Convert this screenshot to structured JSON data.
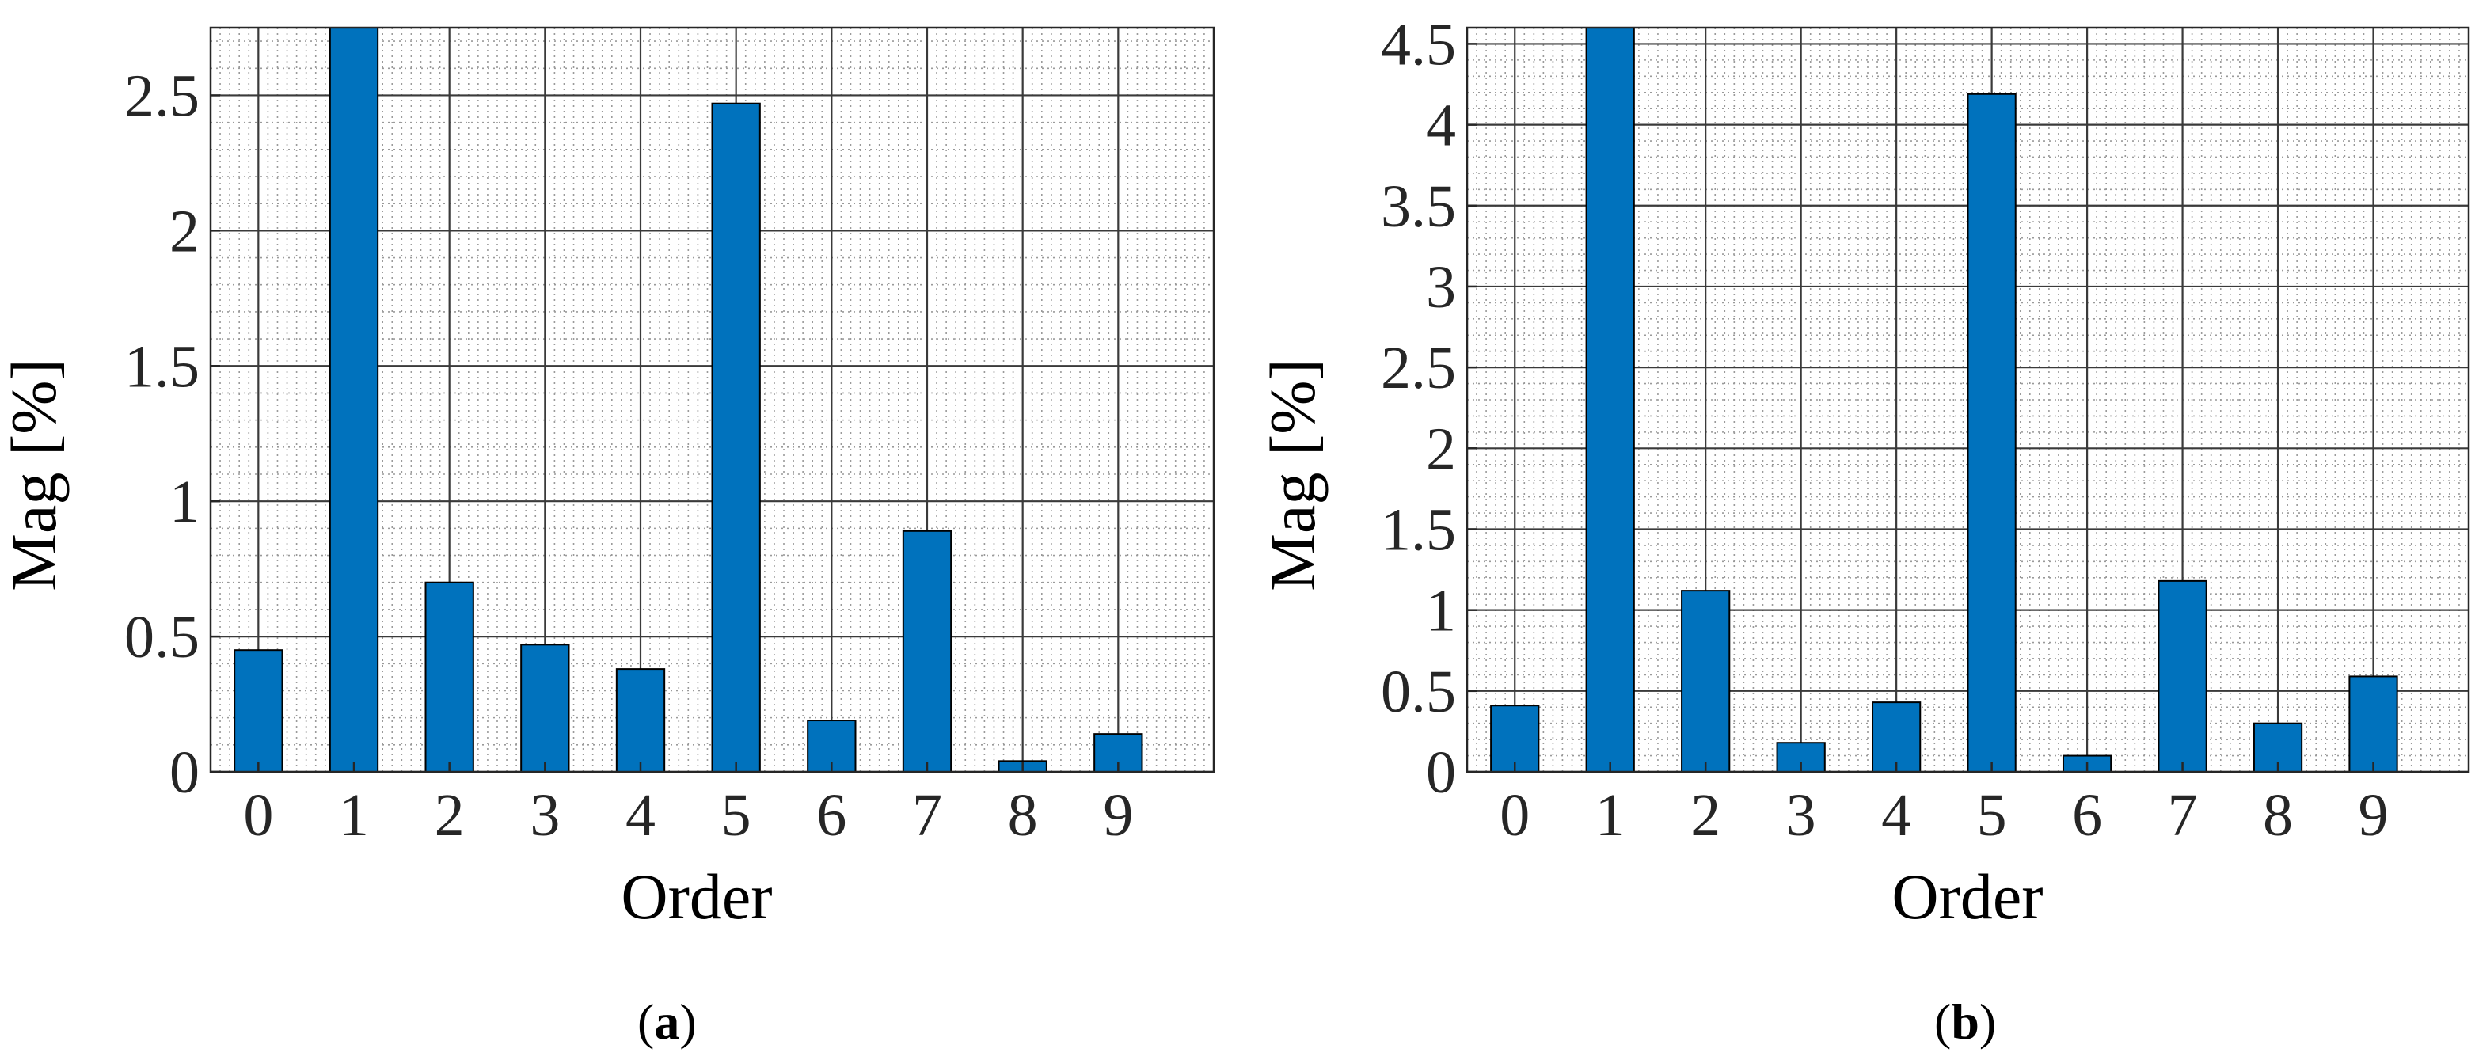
{
  "chart_data": [
    {
      "type": "bar",
      "caption": "a",
      "categories": [
        "0",
        "1",
        "2",
        "3",
        "4",
        "5",
        "6",
        "7",
        "8",
        "9"
      ],
      "values": [
        0.45,
        2.75,
        0.7,
        0.47,
        0.38,
        2.47,
        0.19,
        0.89,
        0.04,
        0.14
      ],
      "xlabel": "Order",
      "ylabel": "Mag [%]",
      "ylim": [
        0,
        2.75
      ],
      "yticks": [
        0,
        0.5,
        1,
        1.5,
        2,
        2.5
      ],
      "ytick_labels": [
        "0",
        "0.5",
        "1",
        "1.5",
        "2",
        "2.5"
      ],
      "grid": true,
      "minor_grid": true,
      "bar_color": "#0072BD"
    },
    {
      "type": "bar",
      "caption": "b",
      "categories": [
        "0",
        "1",
        "2",
        "3",
        "4",
        "5",
        "6",
        "7",
        "8",
        "9"
      ],
      "values": [
        0.41,
        4.6,
        1.12,
        0.18,
        0.43,
        4.19,
        0.1,
        1.18,
        0.3,
        0.59
      ],
      "xlabel": "Order",
      "ylabel": "Mag [%]",
      "ylim": [
        0,
        4.6
      ],
      "yticks": [
        0,
        0.5,
        1,
        1.5,
        2,
        2.5,
        3,
        3.5,
        4,
        4.5
      ],
      "ytick_labels": [
        "0",
        "0.5",
        "1",
        "1.5",
        "2",
        "2.5",
        "3",
        "3.5",
        "4",
        "4.5"
      ],
      "grid": true,
      "minor_grid": true,
      "bar_color": "#0072BD"
    }
  ]
}
